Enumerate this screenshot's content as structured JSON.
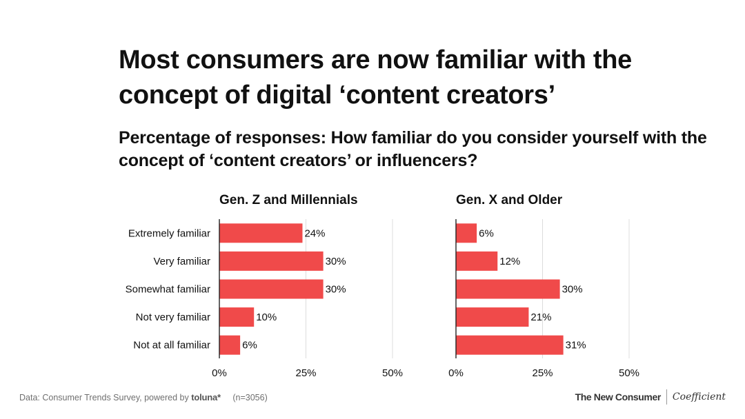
{
  "title": "Most consumers are now familiar with the concept of digital ‘content creators’",
  "subtitle": "Percentage of responses: How familiar do you consider yourself with the concept of ‘content creators’ or influencers?",
  "colors": {
    "bar": "#f04a4a",
    "grid": "#dcdcdc",
    "axis": "#222222",
    "text": "#111111"
  },
  "chart_data": [
    {
      "type": "bar",
      "orientation": "horizontal",
      "title": "Gen. Z and Millennials",
      "categories": [
        "Extremely familiar",
        "Very familiar",
        "Somewhat familiar",
        "Not very familiar",
        "Not at all familiar"
      ],
      "values": [
        24,
        30,
        30,
        10,
        6
      ],
      "value_labels": [
        "24%",
        "30%",
        "30%",
        "10%",
        "6%"
      ],
      "xlim": [
        0,
        50
      ],
      "ticks": [
        0,
        25,
        50
      ],
      "tick_labels": [
        "0%",
        "25%",
        "50%"
      ]
    },
    {
      "type": "bar",
      "orientation": "horizontal",
      "title": "Gen. X and Older",
      "categories": [
        "Extremely familiar",
        "Very familiar",
        "Somewhat familiar",
        "Not very familiar",
        "Not at all familiar"
      ],
      "values": [
        6,
        12,
        30,
        21,
        31
      ],
      "value_labels": [
        "6%",
        "12%",
        "30%",
        "21%",
        "31%"
      ],
      "xlim": [
        0,
        50
      ],
      "ticks": [
        0,
        25,
        50
      ],
      "tick_labels": [
        "0%",
        "25%",
        "50%"
      ]
    }
  ],
  "footer": {
    "source": "Data: Consumer Trends Survey, powered by",
    "brand": "toluna*",
    "sample": "(n=3056)",
    "publisher": "The New Consumer",
    "partner": "Coefficient"
  }
}
